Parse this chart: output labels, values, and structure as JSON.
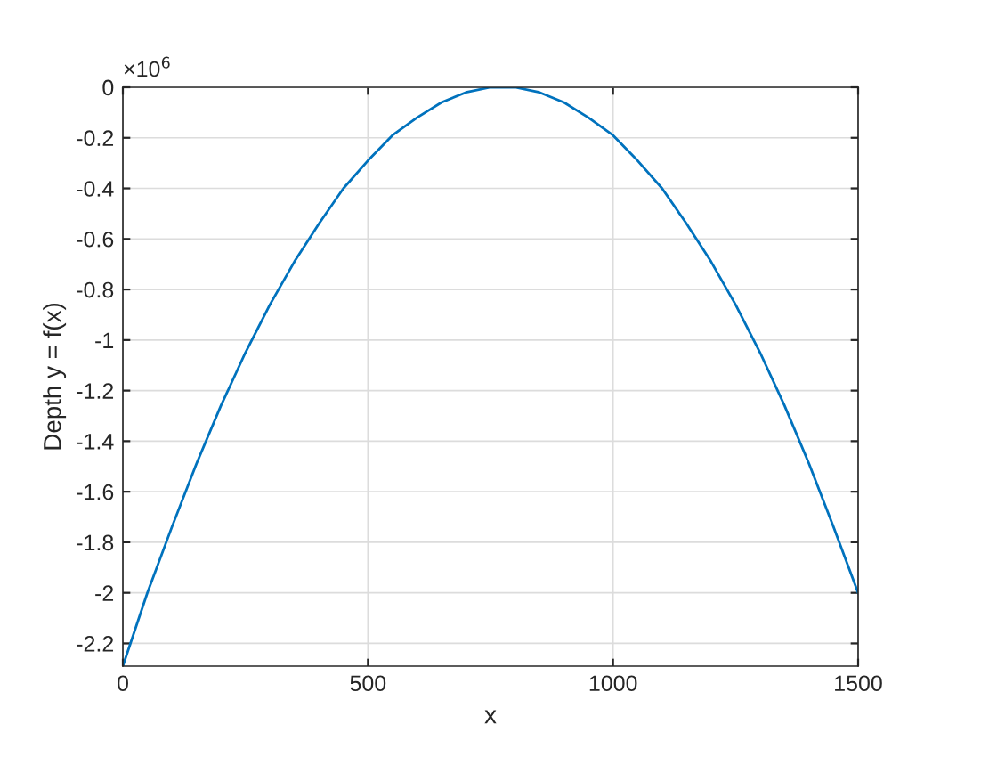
{
  "chart_data": {
    "type": "line",
    "xlabel": "x",
    "ylabel": "Depth y = f(x)",
    "x": [
      0,
      50,
      100,
      150,
      200,
      250,
      300,
      350,
      400,
      450,
      500,
      550,
      600,
      650,
      700,
      750,
      775,
      800,
      850,
      900,
      950,
      1000,
      1050,
      1100,
      1150,
      1200,
      1250,
      1300,
      1350,
      1400,
      1450,
      1500
    ],
    "series": [
      {
        "color": "#0072bd",
        "values": [
          -2.29,
          -2.0,
          -1.74,
          -1.49,
          -1.26,
          -1.05,
          -0.86,
          -0.69,
          -0.54,
          -0.4,
          -0.29,
          -0.19,
          -0.12,
          -0.06,
          -0.02,
          0,
          0,
          0,
          -0.02,
          -0.06,
          -0.12,
          -0.19,
          -0.29,
          -0.4,
          -0.54,
          -0.69,
          -0.86,
          -1.05,
          -1.26,
          -1.49,
          -1.74,
          -2.0
        ]
      }
    ],
    "xlim": [
      0,
      1500
    ],
    "xticks": [
      0,
      500,
      1000,
      1500
    ],
    "ylim": [
      -2.29,
      0
    ],
    "yticks": [
      -2.2,
      -2,
      -1.8,
      -1.6,
      -1.4,
      -1.2,
      -1,
      -0.8,
      -0.6,
      -0.4,
      -0.2,
      0
    ],
    "annotations": [
      "×10$^{6}$"
    ],
    "grid": true,
    "marker": "none",
    "line_style": "solid",
    "legend": false
  }
}
